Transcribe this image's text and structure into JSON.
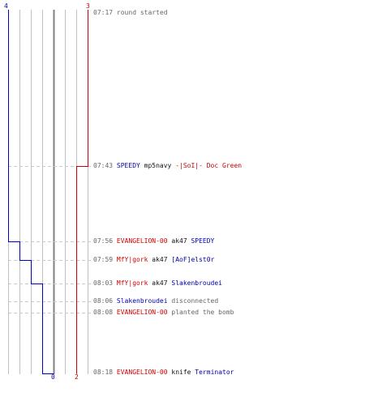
{
  "timeline": {
    "colors": {
      "blue": "#0000cc",
      "red": "#cc0000",
      "grid": "#c0c0c0",
      "center": "#808080",
      "dash": "#c8c8c8"
    },
    "team_blue": {
      "start_count": "4",
      "end_count": "0"
    },
    "team_red": {
      "start_count": "3",
      "end_count": "2"
    }
  },
  "events": [
    {
      "time": "07:17",
      "message": "round started"
    },
    {
      "time": "07:43",
      "actor": "SPEEDY",
      "weapon": "mp5navy",
      "victim": "-|SoI|- Doc Green"
    },
    {
      "time": "07:56",
      "actor": "EVANGELION-00",
      "weapon": "ak47",
      "victim": "SPEEDY"
    },
    {
      "time": "07:59",
      "actor": "MfY|gork",
      "weapon": "ak47",
      "victim": "[AoF]elst0r"
    },
    {
      "time": "08:03",
      "actor": "MfY|gork",
      "weapon": "ak47",
      "victim": "Slakenbroudei"
    },
    {
      "time": "08:06",
      "actor": "Slakenbroudei",
      "action": "disconnected"
    },
    {
      "time": "08:08",
      "actor": "EVANGELION-00",
      "action": "planted the bomb"
    },
    {
      "time": "08:18",
      "actor": "EVANGELION-00",
      "weapon": "knife",
      "victim": "Terminator"
    }
  ]
}
